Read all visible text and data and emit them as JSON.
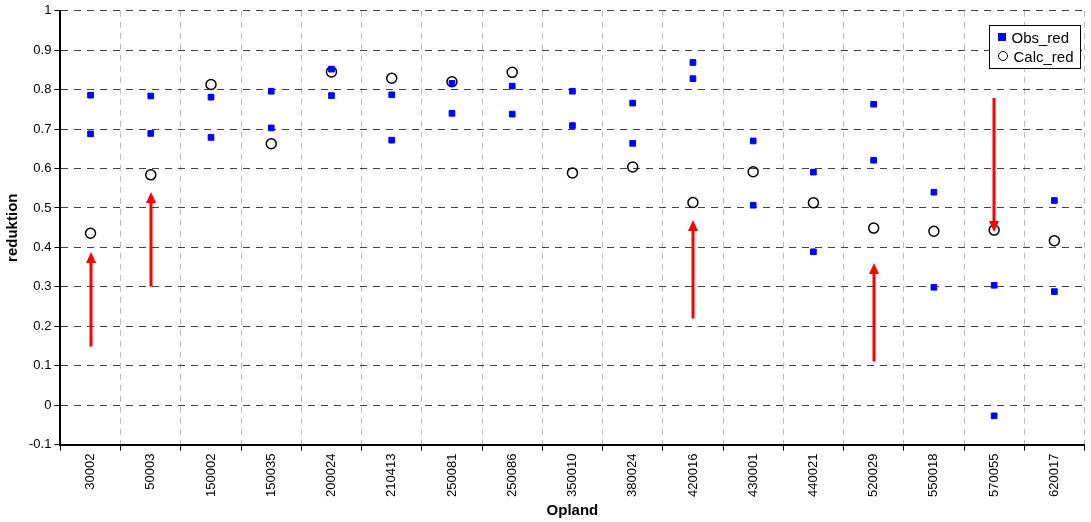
{
  "chart_data": {
    "type": "scatter",
    "xlabel": "Opland",
    "ylabel": "reduktion",
    "categories": [
      "30002",
      "50003",
      "150002",
      "150035",
      "200024",
      "210413",
      "250081",
      "250086",
      "350010",
      "380024",
      "420016",
      "430001",
      "440021",
      "520029",
      "550018",
      "570055",
      "620017"
    ],
    "series": [
      {
        "name": "Obs_red",
        "color": "#0000ff",
        "marker": "square",
        "x": [
          "30002",
          "30002",
          "50003",
          "50003",
          "150002",
          "150002",
          "150035",
          "150035",
          "200024",
          "200024",
          "210413",
          "210413",
          "250081",
          "250081",
          "250086",
          "250086",
          "350010",
          "350010",
          "380024",
          "380024",
          "420016",
          "420016",
          "430001",
          "430001",
          "440021",
          "440021",
          "520029",
          "520029",
          "550018",
          "550018",
          "570055",
          "570055",
          "620017",
          "620017"
        ],
        "values": [
          0.786,
          0.688,
          0.784,
          0.689,
          0.781,
          0.679,
          0.796,
          0.703,
          0.852,
          0.785,
          0.787,
          0.672,
          0.816,
          0.74,
          0.809,
          0.738,
          0.796,
          0.709,
          0.766,
          0.664,
          0.869,
          0.828,
          0.67,
          0.507,
          0.591,
          0.389,
          0.763,
          0.621,
          0.54,
          0.299,
          0.304,
          -0.027,
          0.519,
          0.288
        ]
      },
      {
        "name": "Calc_red",
        "color": "#000000",
        "marker": "circle",
        "values": [
          0.436,
          0.584,
          0.813,
          0.663,
          0.845,
          0.829,
          0.82,
          0.844,
          0.589,
          0.604,
          0.514,
          0.592,
          0.513,
          0.449,
          0.441,
          0.444,
          0.417
        ]
      }
    ],
    "ylim": [
      -0.1,
      1
    ],
    "yticks": [
      -0.1,
      0,
      0.1,
      0.2,
      0.3,
      0.4,
      0.5,
      0.6,
      0.7,
      0.8,
      0.9,
      1
    ],
    "grid": true,
    "legend": "top right"
  }
}
